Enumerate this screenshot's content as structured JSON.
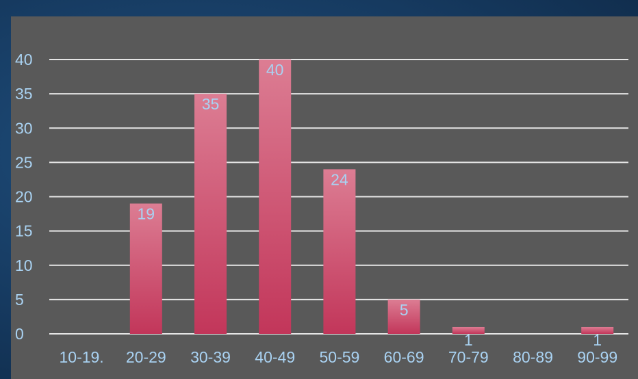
{
  "chart_data": {
    "type": "bar",
    "categories": [
      "10-19.",
      "20-29",
      "30-39",
      "40-49",
      "50-59",
      "60-69",
      "70-79",
      "80-89",
      "90-99"
    ],
    "values": [
      0,
      19,
      35,
      40,
      24,
      5,
      1,
      0,
      1
    ],
    "data_labels": [
      "",
      "19",
      "35",
      "40",
      "24",
      "5",
      "1",
      "",
      "1"
    ],
    "y_ticks": [
      "0",
      "5",
      "10",
      "15",
      "20",
      "25",
      "30",
      "35",
      "40"
    ],
    "ylim": [
      0,
      40
    ],
    "grid": true,
    "legend": "none",
    "colors": {
      "bar_top": "#dc7d93",
      "bar_bottom": "#c2365a",
      "grid": "#e6e6e6",
      "text": "#a9d2f2",
      "panel": "#595959"
    }
  }
}
